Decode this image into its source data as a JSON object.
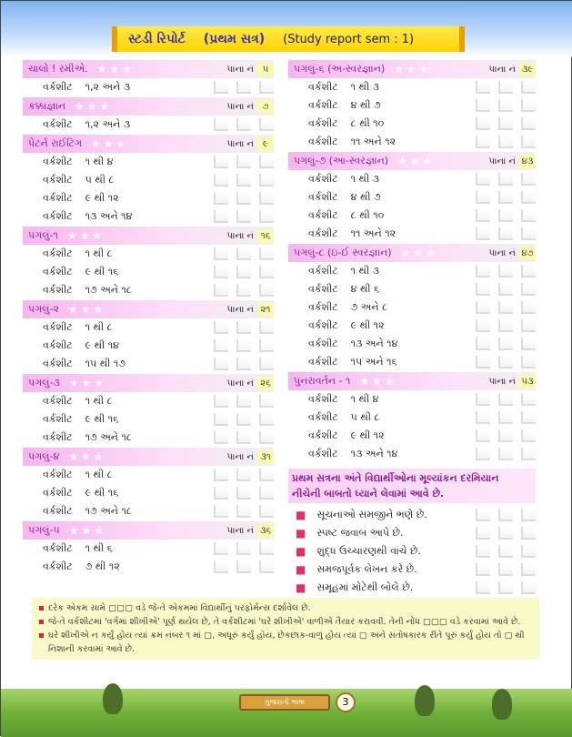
{
  "header": {
    "title_gu": "સ્ટડી રિપોર્ટ",
    "title_sem": "(પ્રથમ સત્ર)",
    "title_en": "(Study report  sem : 1)"
  },
  "page_label": "પાના નં",
  "left": [
    {
      "title": "ચાલો ! રમીએ.",
      "page": "૫",
      "rows": [
        [
          "વર્કશીટ",
          "૧,૨ અને ૩"
        ]
      ]
    },
    {
      "title": "કક્કાજ્ઞાન",
      "page": "૭",
      "rows": [
        [
          "વર્કશીટ",
          "૧,૨ અને ૩"
        ]
      ]
    },
    {
      "title": "પેટર્ન રાઈટિંગ",
      "page": "૯",
      "rows": [
        [
          "વર્કશીટ",
          "૧ થી ૪"
        ],
        [
          "વર્કશીટ",
          "૫ થી ૮"
        ],
        [
          "વર્કશીટ",
          "૯ થી ૧૨"
        ],
        [
          "વર્કશીટ",
          "૧૩ અને ૧૪"
        ]
      ]
    },
    {
      "title": "પગલું-૧",
      "page": "૧૬",
      "rows": [
        [
          "વર્કશીટ",
          "૧ થી ૮"
        ],
        [
          "વર્કશીટ",
          "૯ થી ૧૬"
        ],
        [
          "વર્કશીટ",
          "૧૭ અને ૧૮"
        ]
      ]
    },
    {
      "title": "પગલું-૨",
      "page": "૨૧",
      "rows": [
        [
          "વર્કશીટ",
          "૧ થી ૮"
        ],
        [
          "વર્કશીટ",
          "૯ થી ૧૪"
        ],
        [
          "વર્કશીટ",
          "૧૫ થી ૧૭"
        ]
      ]
    },
    {
      "title": "પગલું-૩",
      "page": "૨૬",
      "rows": [
        [
          "વર્કશીટ",
          "૧ થી ૮"
        ],
        [
          "વર્કશીટ",
          "૯ થી ૧૬"
        ],
        [
          "વર્કશીટ",
          "૧૭ અને ૧૮"
        ]
      ]
    },
    {
      "title": "પગલું-૪",
      "page": "૩૧",
      "rows": [
        [
          "વર્કશીટ",
          "૧ થી ૮"
        ],
        [
          "વર્કશીટ",
          "૯ થી ૧૬"
        ],
        [
          "વર્કશીટ",
          "૧૭ અને ૧૮"
        ]
      ]
    },
    {
      "title": "પગલું-૫",
      "page": "૩૬",
      "rows": [
        [
          "વર્કશીટ",
          "૧ થી ૬"
        ],
        [
          "વર્કશીટ",
          "૭ થી ૧૨"
        ]
      ]
    }
  ],
  "right": [
    {
      "title": "પગલું-૬ (અ-સ્વરજ્ઞાન)",
      "page": "૩૯",
      "rows": [
        [
          "વર્કશીટ",
          "૧ થી ૩"
        ],
        [
          "વર્કશીટ",
          "૪ થી ૭"
        ],
        [
          "વર્કશીટ",
          "૮ થી ૧૦"
        ],
        [
          "વર્કશીટ",
          "૧૧ અને ૧૨"
        ]
      ]
    },
    {
      "title": "પગલું-૭ (આ-સ્વરજ્ઞાન)",
      "page": "૪૩",
      "rows": [
        [
          "વર્કશીટ",
          "૧ થી ૩"
        ],
        [
          "વર્કશીટ",
          "૪ થી ૭"
        ],
        [
          "વર્કશીટ",
          "૮ થી ૧૦"
        ],
        [
          "વર્કશીટ",
          "૧૧ અને ૧૨"
        ]
      ]
    },
    {
      "title": "પગલું-૮ (ઇ-ઈ સ્વરજ્ઞાન)",
      "page": "૪૭",
      "rows": [
        [
          "વર્કશીટ",
          "૧ થી ૩"
        ],
        [
          "વર્કશીટ",
          "૪ થી ૬"
        ],
        [
          "વર્કશીટ",
          "૭ અને ૮"
        ],
        [
          "વર્કશીટ",
          "૯ થી ૧૨"
        ],
        [
          "વર્કશીટ",
          "૧૩ અને ૧૪"
        ],
        [
          "વર્કશીટ",
          "૧૫ અને ૧૬"
        ]
      ]
    },
    {
      "title": "પુનરાવર્તન - ૧",
      "page": "૫૩",
      "rows": [
        [
          "વર્કશીટ",
          "૧ થી ૪"
        ],
        [
          "વર્કશીટ",
          "૫ થી ૮"
        ],
        [
          "વર્કશીટ",
          "૯ થી ૧૨"
        ],
        [
          "વર્કશીટ",
          "૧૩ અને ૧૪"
        ]
      ]
    }
  ],
  "evaluation": {
    "heading_1": "પ્રથમ સત્રના અંતે વિદ્યાર્થીઓના મૂલ્યાંકન દરમિયાન",
    "heading_2": "નીચેની બાબતો ધ્યાને લેવામાં આવે છે.",
    "items": [
      "સૂચનાઓ સમજીને ભણે છે.",
      "સ્પષ્ટ જવાબ આપે છે.",
      "શુદ્ધ ઉચ્ચારણથી વાંચે છે.",
      "સમજપૂર્વક લેખન કરે છે.",
      "સમૂહમાં મોટેથી બોલે છે."
    ]
  },
  "notes": [
    "દરેક એકમ સામે ▢▢▢ વડે જે-તે એકમમાં વિદ્યાર્થીનું પરફોર્મન્સ દર્શાવેલ છે.",
    "જે-તે વર્કશીટમાં 'વર્ગમાં શીખીએ' પૂર્ણ થયેલ છે, તે વર્કશીટમાં 'ઘરે શીખીએ' વાળીએ તૈયાર કરાવવી. તેની નોંધ ▢▢▢ વડે કરવામાં આવે છે.",
    "ઘરે શીખીએ ન કર્યું હોય ત્યાં ક્રમ નંબર ૧ માં ▢, અધૂરું કર્યું હોય, છેકછાક-વાળું હોય ત્યાં ▢ અને સંતોષકારક રીતે પૂરું કર્યું હોય તો ▢ થી નિશાની કરવામાં આવે છે."
  ],
  "footer": {
    "book_label": "ગુજરાતી ભાષા",
    "page_number": "3"
  },
  "colors": {
    "section_pink": "#f6b6ef",
    "banner_yellow": "#ffd400",
    "note_bg": "#f8fbc8",
    "heading_text": "#8a1a9a"
  }
}
